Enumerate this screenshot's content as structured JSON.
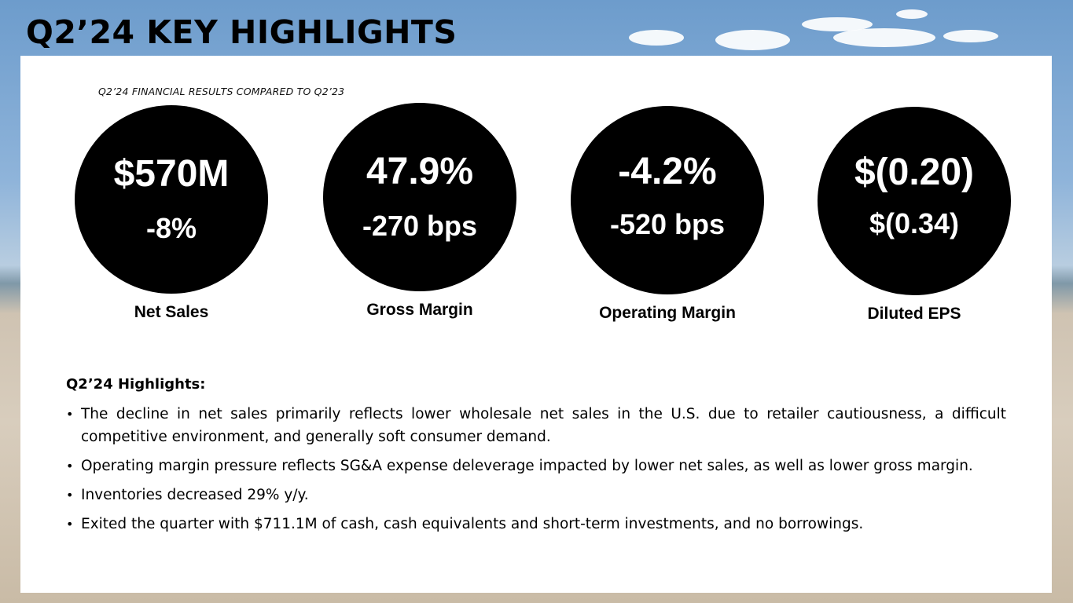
{
  "title": "Q2’24 KEY HIGHLIGHTS",
  "subtitle": "Q2’24 FINANCIAL RESULTS COMPARED TO Q2’23",
  "metrics": [
    {
      "primary": "$570M",
      "secondary": "-8%",
      "label": "Net Sales"
    },
    {
      "primary": "47.9%",
      "secondary": "-270 bps",
      "label": "Gross Margin"
    },
    {
      "primary": "-4.2%",
      "secondary": "-520 bps",
      "label": "Operating Margin"
    },
    {
      "primary": "$(0.20)",
      "secondary": "$(0.34)",
      "label": "Diluted EPS"
    }
  ],
  "highlights": {
    "heading": "Q2’24 Highlights:",
    "items": [
      "The decline in net sales primarily reflects lower wholesale net sales in the U.S. due to retailer cautiousness, a difficult competitive environment, and generally soft consumer demand.",
      "Operating margin pressure reflects SG&A expense deleverage impacted by lower net sales, as well as lower gross margin.",
      "Inventories decreased 29% y/y.",
      "Exited the quarter with $711.1M of cash, cash equivalents and short-term investments, and no borrowings."
    ]
  },
  "colors": {
    "circle": "#000000",
    "circle_text": "#ffffff",
    "panel": "#ffffff"
  }
}
